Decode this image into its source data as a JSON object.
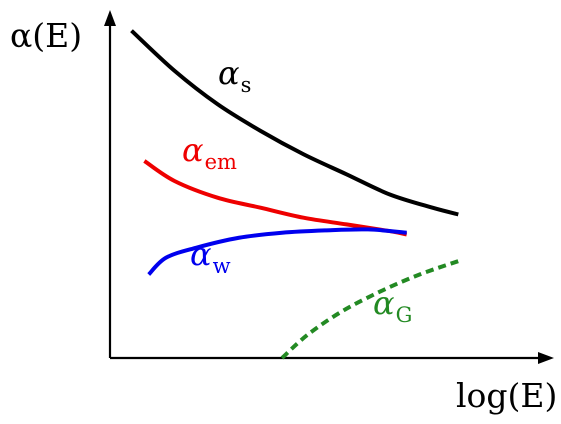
{
  "chart_data": {
    "type": "line",
    "title": "",
    "xlabel": "log(E)",
    "ylabel": "α(E)",
    "xlim": [
      0,
      10
    ],
    "ylim": [
      0,
      10
    ],
    "grid": false,
    "ticks": false,
    "series": [
      {
        "name": "α_s",
        "label_symbol": "α",
        "label_subscript": "s",
        "color": "#000000",
        "dash": "solid",
        "x": [
          0.5,
          1.5,
          2.5,
          3.5,
          4.5,
          5.5,
          6.5,
          7.5,
          8.1
        ],
        "y": [
          9.8,
          8.6,
          7.6,
          6.8,
          6.1,
          5.5,
          4.9,
          4.5,
          4.3
        ]
      },
      {
        "name": "α_em",
        "label_symbol": "α",
        "label_subscript": "em",
        "color": "#ee0000",
        "dash": "solid",
        "x": [
          0.8,
          1.5,
          2.5,
          3.5,
          4.5,
          5.5,
          6.5,
          6.9
        ],
        "y": [
          5.9,
          5.3,
          4.8,
          4.5,
          4.2,
          4.0,
          3.8,
          3.7
        ]
      },
      {
        "name": "α_w",
        "label_symbol": "α",
        "label_subscript": "w",
        "color": "#0000ee",
        "dash": "solid",
        "x": [
          0.9,
          1.3,
          2.0,
          3.0,
          4.0,
          5.0,
          6.0,
          6.9
        ],
        "y": [
          2.5,
          3.0,
          3.3,
          3.6,
          3.75,
          3.82,
          3.85,
          3.75
        ]
      },
      {
        "name": "α_G",
        "label_symbol": "α",
        "label_subscript": "G",
        "color": "#238a23",
        "dash": "dashed",
        "x": [
          4.0,
          4.6,
          5.4,
          6.3,
          7.2,
          8.1
        ],
        "y": [
          0.0,
          0.7,
          1.4,
          2.0,
          2.5,
          2.9
        ]
      }
    ]
  }
}
